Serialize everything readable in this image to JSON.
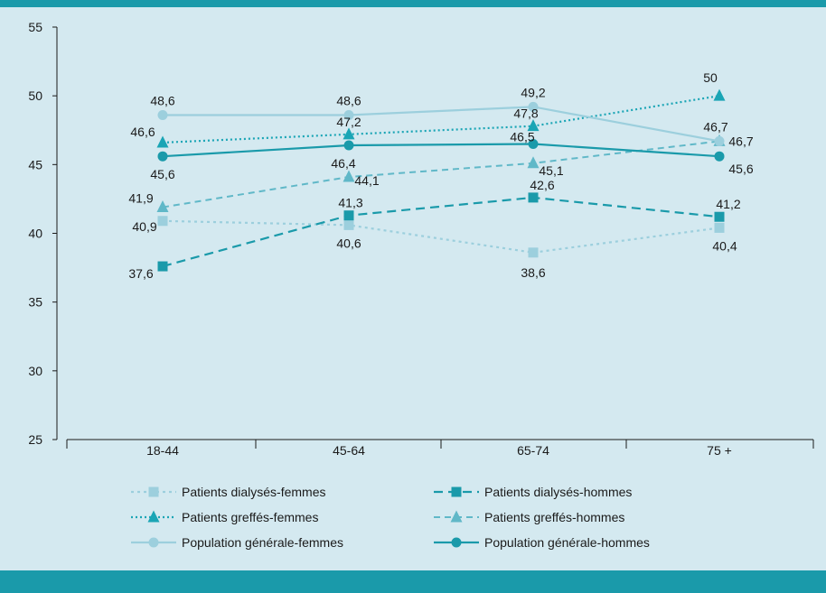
{
  "colors": {
    "background": "#d4e9f0",
    "frame_bar": "#1a9aaa",
    "axis": "#1a1a1a"
  },
  "chart_data": {
    "type": "line",
    "categories": [
      "18-44",
      "45-64",
      "65-74",
      "75 +"
    ],
    "ylim": [
      25,
      55
    ],
    "yticks": [
      25,
      30,
      35,
      40,
      45,
      50,
      55
    ],
    "title": "",
    "xlabel": "",
    "ylabel": "",
    "grid": false,
    "legend_position": "bottom",
    "series": [
      {
        "name": "Patients dialysés-femmes",
        "values": [
          40.9,
          40.6,
          38.6,
          40.4
        ],
        "labels": [
          "40,9",
          "40,6",
          "38,6",
          "40,4"
        ],
        "marker": "square",
        "dash": "dotted",
        "color": "#9ccfdd"
      },
      {
        "name": "Patients dialysés-hommes",
        "values": [
          37.6,
          41.3,
          42.6,
          41.2
        ],
        "labels": [
          "37,6",
          "41,3",
          "42,6",
          "41,2"
        ],
        "marker": "square",
        "dash": "dashed",
        "color": "#1a9aaa"
      },
      {
        "name": "Patients greffés-femmes",
        "values": [
          46.6,
          47.2,
          47.8,
          50
        ],
        "labels": [
          "46,6",
          "47,2",
          "47,8",
          "50"
        ],
        "marker": "triangle",
        "dash": "dotted-fine",
        "color": "#1aa5b5"
      },
      {
        "name": "Patients greffés-hommes",
        "values": [
          41.9,
          44.1,
          45.1,
          46.7
        ],
        "labels": [
          "41,9",
          "44,1",
          "45,1",
          "46,7"
        ],
        "marker": "triangle",
        "dash": "dashed-light",
        "color": "#60b8c8"
      },
      {
        "name": "Population générale-femmes",
        "values": [
          48.6,
          48.6,
          49.2,
          46.7
        ],
        "labels": [
          "48,6",
          "48,6",
          "49,2",
          "46,7"
        ],
        "marker": "circle",
        "dash": "solid",
        "color": "#9ccfdd"
      },
      {
        "name": "Population générale-hommes",
        "values": [
          45.6,
          46.4,
          46.5,
          45.6
        ],
        "labels": [
          "45,6",
          "46,4",
          "46,5",
          "45,6"
        ],
        "marker": "circle",
        "dash": "solid",
        "color": "#1a9aaa"
      }
    ]
  }
}
